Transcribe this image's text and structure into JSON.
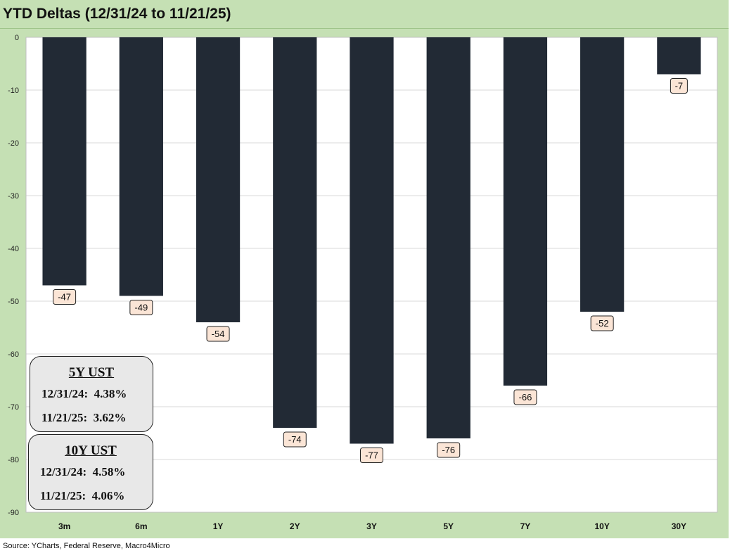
{
  "title": "YTD Deltas (12/31/24 to 11/21/25)",
  "source": "Source: YCharts, Federal Reserve, Macro4Micro",
  "colors": {
    "background": "#c5e0b4",
    "plot_area": "#ffffff",
    "bar": "#222a35",
    "label_bg": "#fbe5d6",
    "gridline": "#d9d9d9"
  },
  "chart_data": {
    "type": "bar",
    "categories": [
      "3m",
      "6m",
      "1Y",
      "2Y",
      "3Y",
      "5Y",
      "7Y",
      "10Y",
      "30Y"
    ],
    "values": [
      -47,
      -49,
      -54,
      -74,
      -77,
      -76,
      -66,
      -52,
      -7
    ],
    "data_labels": [
      "-47",
      "-49",
      "-54",
      "-74",
      "-77",
      "-76",
      "-66",
      "-52",
      "-7"
    ],
    "title": "YTD Deltas (12/31/24 to 11/21/25)",
    "ylim": [
      -90,
      0
    ],
    "yticks": [
      0,
      -10,
      -20,
      -30,
      -40,
      -50,
      -60,
      -70,
      -80,
      -90
    ],
    "ytick_labels": [
      "0",
      "-10",
      "-20",
      "-30",
      "-40",
      "-50",
      "-60",
      "-70",
      "-80",
      "-90"
    ],
    "grid": true,
    "legend": "none"
  },
  "boxes": [
    {
      "header": "5Y UST",
      "line1": "12/31/24:  4.38%",
      "line2": "11/21/25:  3.62%"
    },
    {
      "header": "10Y UST",
      "line1": "12/31/24:  4.58%",
      "line2": "11/21/25:  4.06%"
    }
  ]
}
